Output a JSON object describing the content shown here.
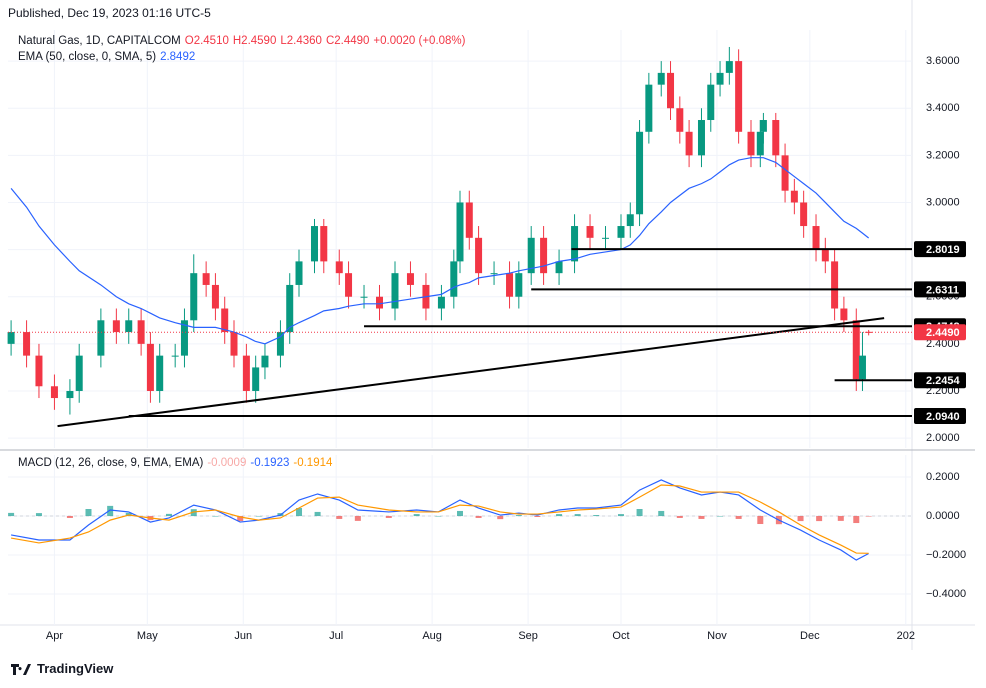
{
  "header": {
    "published": "Published, Dec 19, 2023 01:16 UTC-5"
  },
  "footer": {
    "brand": "TradingView"
  },
  "chart_data": [
    {
      "type": "candlestick",
      "title": "Natural Gas, 1D, CAPITALCOM",
      "legend": [
        "O2.4510",
        "H2.4590",
        "L2.4360",
        "C2.4490",
        "+0.0020 (+0.08%)"
      ],
      "legend_color": "#f23645",
      "up_color": "#089981",
      "down_color": "#f23645",
      "x": [
        77,
        82,
        86,
        91,
        96,
        99,
        106,
        111,
        115,
        119,
        122,
        125,
        130,
        133,
        136,
        140,
        143,
        146,
        149,
        153,
        156,
        159,
        164,
        167,
        170,
        175,
        178,
        183,
        186,
        191,
        196,
        201,
        206,
        211,
        216,
        220,
        222,
        225,
        228,
        233,
        238,
        241,
        245,
        249,
        254,
        259,
        264,
        269,
        274,
        277,
        280,
        283,
        287,
        290,
        293,
        296,
        300,
        303,
        306,
        309,
        312,
        316,
        319,
        320,
        324,
        327,
        330,
        333,
        337,
        340,
        343,
        346,
        350,
        352,
        354
      ],
      "open": [
        2.4,
        2.45,
        2.35,
        2.22,
        2.17,
        2.2,
        2.35,
        2.5,
        2.45,
        2.5,
        2.4,
        2.2,
        2.35,
        2.35,
        2.5,
        2.7,
        2.65,
        2.55,
        2.45,
        2.35,
        2.2,
        2.3,
        2.35,
        2.45,
        2.65,
        2.75,
        2.9,
        2.75,
        2.7,
        2.6,
        2.6,
        2.55,
        2.7,
        2.65,
        2.55,
        2.6,
        2.75,
        3.0,
        2.85,
        2.7,
        2.7,
        2.6,
        2.7,
        2.85,
        2.7,
        2.75,
        2.9,
        2.85,
        2.85,
        2.9,
        2.95,
        3.3,
        3.5,
        3.55,
        3.4,
        3.3,
        3.2,
        3.35,
        3.5,
        3.55,
        3.6,
        3.3,
        3.2,
        3.3,
        3.35,
        3.2,
        3.05,
        3.0,
        2.9,
        2.8,
        2.75,
        2.55,
        2.5,
        2.25,
        2.451
      ],
      "high": [
        2.5,
        2.5,
        2.4,
        2.27,
        2.25,
        2.4,
        2.55,
        2.55,
        2.55,
        2.55,
        2.45,
        2.4,
        2.4,
        2.55,
        2.78,
        2.75,
        2.7,
        2.6,
        2.5,
        2.4,
        2.35,
        2.4,
        2.5,
        2.7,
        2.8,
        2.93,
        2.93,
        2.8,
        2.75,
        2.65,
        2.65,
        2.75,
        2.75,
        2.7,
        2.65,
        2.8,
        3.05,
        3.05,
        2.9,
        2.75,
        2.75,
        2.75,
        2.9,
        2.9,
        2.8,
        2.95,
        2.95,
        2.9,
        2.95,
        3.0,
        3.35,
        3.55,
        3.6,
        3.6,
        3.45,
        3.35,
        3.4,
        3.55,
        3.6,
        3.66,
        3.65,
        3.35,
        3.35,
        3.38,
        3.38,
        3.25,
        3.1,
        3.05,
        2.95,
        2.85,
        2.8,
        2.6,
        2.55,
        2.45,
        2.459
      ],
      "low": [
        2.35,
        2.3,
        2.17,
        2.12,
        2.1,
        2.15,
        2.3,
        2.4,
        2.4,
        2.35,
        2.15,
        2.15,
        2.3,
        2.3,
        2.45,
        2.6,
        2.5,
        2.4,
        2.3,
        2.15,
        2.15,
        2.25,
        2.3,
        2.4,
        2.6,
        2.7,
        2.7,
        2.65,
        2.55,
        2.55,
        2.5,
        2.5,
        2.6,
        2.5,
        2.5,
        2.55,
        2.7,
        2.8,
        2.65,
        2.65,
        2.55,
        2.55,
        2.65,
        2.65,
        2.65,
        2.7,
        2.8,
        2.8,
        2.8,
        2.85,
        2.9,
        3.25,
        3.45,
        3.35,
        3.25,
        3.15,
        3.15,
        3.3,
        3.45,
        3.5,
        3.25,
        3.15,
        3.15,
        3.25,
        3.15,
        3.0,
        2.95,
        2.85,
        2.75,
        2.7,
        2.5,
        2.45,
        2.2,
        2.2,
        2.436
      ],
      "close": [
        2.45,
        2.35,
        2.22,
        2.17,
        2.2,
        2.35,
        2.5,
        2.45,
        2.5,
        2.4,
        2.2,
        2.35,
        2.35,
        2.5,
        2.7,
        2.65,
        2.55,
        2.45,
        2.35,
        2.2,
        2.3,
        2.35,
        2.45,
        2.65,
        2.75,
        2.9,
        2.75,
        2.7,
        2.6,
        2.6,
        2.55,
        2.7,
        2.65,
        2.55,
        2.6,
        2.75,
        3.0,
        2.85,
        2.7,
        2.7,
        2.6,
        2.7,
        2.85,
        2.7,
        2.75,
        2.9,
        2.85,
        2.85,
        2.9,
        2.95,
        3.3,
        3.5,
        3.55,
        3.4,
        3.3,
        3.2,
        3.35,
        3.5,
        3.55,
        3.6,
        3.3,
        3.2,
        3.3,
        3.35,
        3.2,
        3.05,
        3.0,
        2.9,
        2.8,
        2.75,
        2.55,
        2.5,
        2.25,
        2.35,
        2.449
      ],
      "overlays": [
        {
          "type": "line",
          "name": "EMA (50, close, 0, SMA, 5)",
          "value_label": "2.8492",
          "color": "#2962ff",
          "values": [
            3.06,
            2.98,
            2.9,
            2.82,
            2.75,
            2.71,
            2.65,
            2.6,
            2.57,
            2.55,
            2.53,
            2.51,
            2.49,
            2.48,
            2.47,
            2.47,
            2.47,
            2.46,
            2.45,
            2.43,
            2.41,
            2.4,
            2.43,
            2.47,
            2.49,
            2.52,
            2.54,
            2.55,
            2.56,
            2.57,
            2.57,
            2.58,
            2.59,
            2.6,
            2.61,
            2.64,
            2.65,
            2.66,
            2.68,
            2.69,
            2.7,
            2.71,
            2.72,
            2.73,
            2.75,
            2.76,
            2.78,
            2.79,
            2.8,
            2.82,
            2.86,
            2.91,
            2.96,
            3.0,
            3.03,
            3.06,
            3.08,
            3.1,
            3.13,
            3.16,
            3.18,
            3.19,
            3.19,
            3.19,
            3.17,
            3.14,
            3.11,
            3.08,
            3.04,
            3.0,
            2.96,
            2.92,
            2.89,
            2.87,
            2.8492
          ]
        }
      ],
      "trendlines": [
        {
          "x": [
            92,
            359
          ],
          "y": [
            2.051,
            2.509
          ],
          "color": "#000000"
        }
      ],
      "levels": [
        {
          "value": 2.8019,
          "x": [
            258,
            368
          ]
        },
        {
          "value": 2.6311,
          "x": [
            245,
            368
          ]
        },
        {
          "value": 2.4748,
          "x": [
            191,
            368
          ]
        },
        {
          "value": 2.2454,
          "x": [
            343,
            368
          ]
        },
        {
          "value": 2.094,
          "label": "2.0940",
          "x": [
            115,
            368
          ]
        }
      ],
      "level_color": "#000000",
      "last_price": {
        "value": 2.449,
        "label": "2.4490",
        "color": "#f23645"
      },
      "xlim": [
        76,
        368
      ],
      "ylim": [
        1.958,
        3.732
      ],
      "yticks": [
        {
          "value": 3.6,
          "label": "3.6000"
        },
        {
          "value": 3.4,
          "label": "3.4000"
        },
        {
          "value": 3.2,
          "label": "3.2000"
        },
        {
          "value": 3.0,
          "label": "3.0000"
        },
        {
          "value": 2.8,
          "label": "2.8000"
        },
        {
          "value": 2.6,
          "label": "2.6000"
        },
        {
          "value": 2.4,
          "label": "2.4000"
        },
        {
          "value": 2.2,
          "label": "2.2000"
        },
        {
          "value": 2.0,
          "label": "2.0000"
        }
      ],
      "grid": true
    },
    {
      "type": "macd",
      "title": "MACD (12, 26, close, 9, EMA, EMA)",
      "x": [
        77,
        86,
        96,
        102,
        109,
        115,
        122,
        128,
        136,
        143,
        151,
        157,
        164,
        170,
        176,
        183,
        189,
        199,
        208,
        215,
        222,
        228,
        235,
        241,
        247,
        254,
        260,
        266,
        274,
        280,
        287,
        293,
        300,
        306,
        312,
        319,
        325,
        332,
        338,
        345,
        350,
        354
      ],
      "series": [
        {
          "type": "histogram",
          "up_color": "#26a69a",
          "down_color": "#ef5350",
          "value_label": "-0.0009",
          "label_color": "#f7a9a7",
          "values": [
            0.016,
            0.015,
            -0.01,
            0.036,
            0.052,
            0.016,
            -0.021,
            0.011,
            0.035,
            0,
            -0.026,
            0,
            0.015,
            0.041,
            0.021,
            -0.015,
            -0.025,
            -0.01,
            0.01,
            0,
            0.026,
            -0.01,
            -0.016,
            0.005,
            -0.005,
            0.01,
            0.01,
            0.005,
            0.01,
            0.036,
            0.026,
            -0.01,
            -0.015,
            0,
            -0.015,
            -0.041,
            -0.042,
            -0.026,
            -0.026,
            -0.025,
            -0.036,
            -0.0009
          ]
        },
        {
          "type": "line",
          "color": "#2962ff",
          "value_label": "-0.1923",
          "values": [
            -0.097,
            -0.123,
            -0.123,
            -0.046,
            0.031,
            0.021,
            -0.031,
            -0.01,
            0.056,
            0.031,
            -0.031,
            -0.021,
            0.005,
            0.082,
            0.113,
            0.082,
            0.031,
            0.021,
            0.031,
            0.021,
            0.082,
            0.041,
            0.005,
            0.015,
            0.005,
            0.031,
            0.041,
            0.041,
            0.056,
            0.133,
            0.185,
            0.144,
            0.108,
            0.123,
            0.108,
            0.031,
            -0.021,
            -0.072,
            -0.123,
            -0.174,
            -0.226,
            -0.1923
          ]
        },
        {
          "type": "line",
          "color": "#ff9800",
          "value_label": "-0.1914",
          "values": [
            -0.113,
            -0.138,
            -0.113,
            -0.082,
            -0.021,
            0.005,
            -0.01,
            -0.021,
            0.021,
            0.031,
            -0.005,
            -0.021,
            -0.01,
            0.041,
            0.092,
            0.097,
            0.056,
            0.031,
            0.021,
            0.021,
            0.056,
            0.051,
            0.021,
            0.01,
            0.01,
            0.021,
            0.031,
            0.036,
            0.046,
            0.097,
            0.159,
            0.154,
            0.123,
            0.123,
            0.123,
            0.072,
            0.021,
            -0.046,
            -0.097,
            -0.149,
            -0.19,
            -0.1914
          ]
        }
      ],
      "xlim": [
        76,
        368
      ],
      "ylim": [
        -0.5436,
        0.313
      ],
      "xticks": [
        {
          "value": 91,
          "label": "Apr"
        },
        {
          "value": 121,
          "label": "May"
        },
        {
          "value": 152,
          "label": "Jun"
        },
        {
          "value": 182,
          "label": "Jul"
        },
        {
          "value": 213,
          "label": "Aug"
        },
        {
          "value": 244,
          "label": "Sep"
        },
        {
          "value": 274,
          "label": "Oct"
        },
        {
          "value": 305,
          "label": "Nov"
        },
        {
          "value": 335,
          "label": "Dec"
        },
        {
          "value": 366,
          "label": "202"
        }
      ],
      "yticks": [
        {
          "value": 0.2,
          "label": "0.2000"
        },
        {
          "value": 0,
          "label": "0.0000"
        },
        {
          "value": -0.2,
          "label": "−0.2000"
        },
        {
          "value": -0.4,
          "label": "−0.4000"
        }
      ],
      "grid": true
    }
  ]
}
